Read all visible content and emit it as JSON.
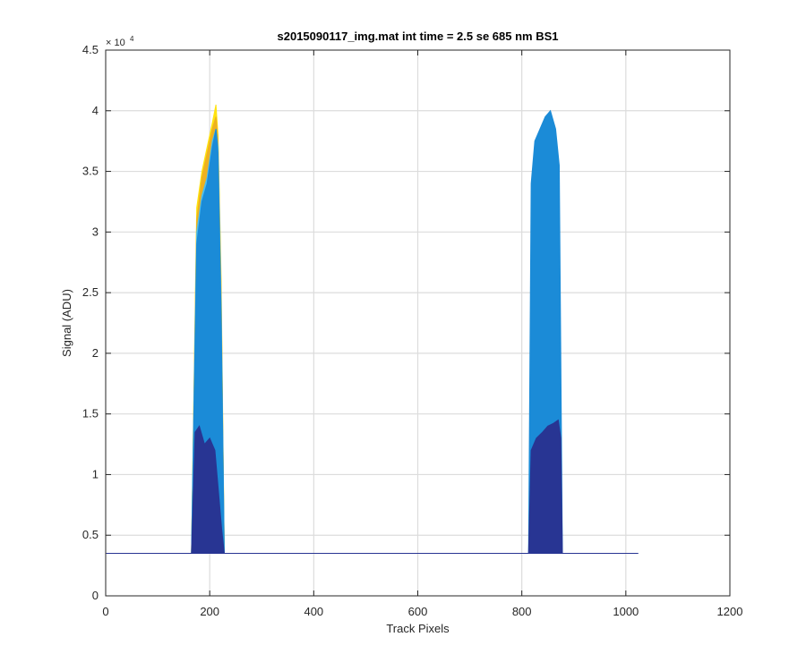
{
  "chart_data": {
    "type": "area",
    "title": "s2015090117_img.mat int time = 2.5 se  685 nm BS1",
    "xlabel": "Track Pixels",
    "ylabel": "Signal (ADU)",
    "xlim": [
      0,
      1200
    ],
    "ylim": [
      0,
      45000
    ],
    "x_ticks": [
      0,
      200,
      400,
      600,
      800,
      1000,
      1200
    ],
    "y_ticks": [
      0,
      5000,
      10000,
      15000,
      20000,
      25000,
      30000,
      35000,
      40000,
      45000
    ],
    "y_tick_labels": [
      "0",
      "0.5",
      "1",
      "1.5",
      "2",
      "2.5",
      "3",
      "3.5",
      "4",
      "4.5"
    ],
    "y_exponent_label": "× 10",
    "y_exponent_power": "4",
    "grid": true,
    "baseline": 3500,
    "x_extent": [
      1,
      1024
    ],
    "series": [
      {
        "color": "#ffe30f",
        "peaks": [
          {
            "start": 165,
            "end": 228,
            "x": [
              165,
              175,
              185,
              195,
              205,
              212,
              216,
              222,
              228
            ],
            "y": [
              3500,
              32000,
              35000,
              37000,
              39000,
              40500,
              38000,
              26000,
              3500
            ]
          }
        ]
      },
      {
        "color": "#edb120",
        "peaks": [
          {
            "start": 165,
            "end": 228,
            "x": [
              165,
              175,
              185,
              195,
              205,
              212,
              216,
              222,
              228
            ],
            "y": [
              3500,
              31000,
              34500,
              36500,
              38500,
              39500,
              37500,
              25000,
              3500
            ]
          }
        ]
      },
      {
        "color": "#4dbeee",
        "peaks": [
          {
            "start": 165,
            "end": 228,
            "x": [
              165,
              175,
              185,
              195,
              205,
              212,
              216,
              222,
              228
            ],
            "y": [
              3500,
              30000,
              33000,
              34500,
              37500,
              38500,
              37000,
              24000,
              3500
            ]
          }
        ]
      },
      {
        "color": "#1b8bd7",
        "peaks": [
          {
            "start": 165,
            "end": 228,
            "x": [
              165,
              175,
              185,
              195,
              205,
              212,
              216,
              222,
              228
            ],
            "y": [
              3500,
              29000,
              32500,
              34000,
              37000,
              38500,
              36500,
              23000,
              3500
            ]
          },
          {
            "start": 813,
            "end": 878,
            "x": [
              813,
              818,
              825,
              835,
              845,
              855,
              865,
              872,
              878
            ],
            "y": [
              3500,
              34000,
              37500,
              38500,
              39500,
              40000,
              38500,
              35500,
              3500
            ]
          }
        ]
      },
      {
        "color": "#283593",
        "peaks": [
          {
            "start": 165,
            "end": 228,
            "x": [
              165,
              172,
              180,
              190,
              200,
              210,
              218,
              223,
              228
            ],
            "y": [
              3500,
              13500,
              14000,
              12500,
              13000,
              12000,
              8000,
              5500,
              3500
            ]
          },
          {
            "start": 813,
            "end": 878,
            "x": [
              813,
              818,
              828,
              840,
              850,
              860,
              870,
              875,
              878
            ],
            "y": [
              3500,
              12000,
              13000,
              13500,
              14000,
              14200,
              14500,
              13000,
              3500
            ]
          }
        ]
      }
    ]
  }
}
